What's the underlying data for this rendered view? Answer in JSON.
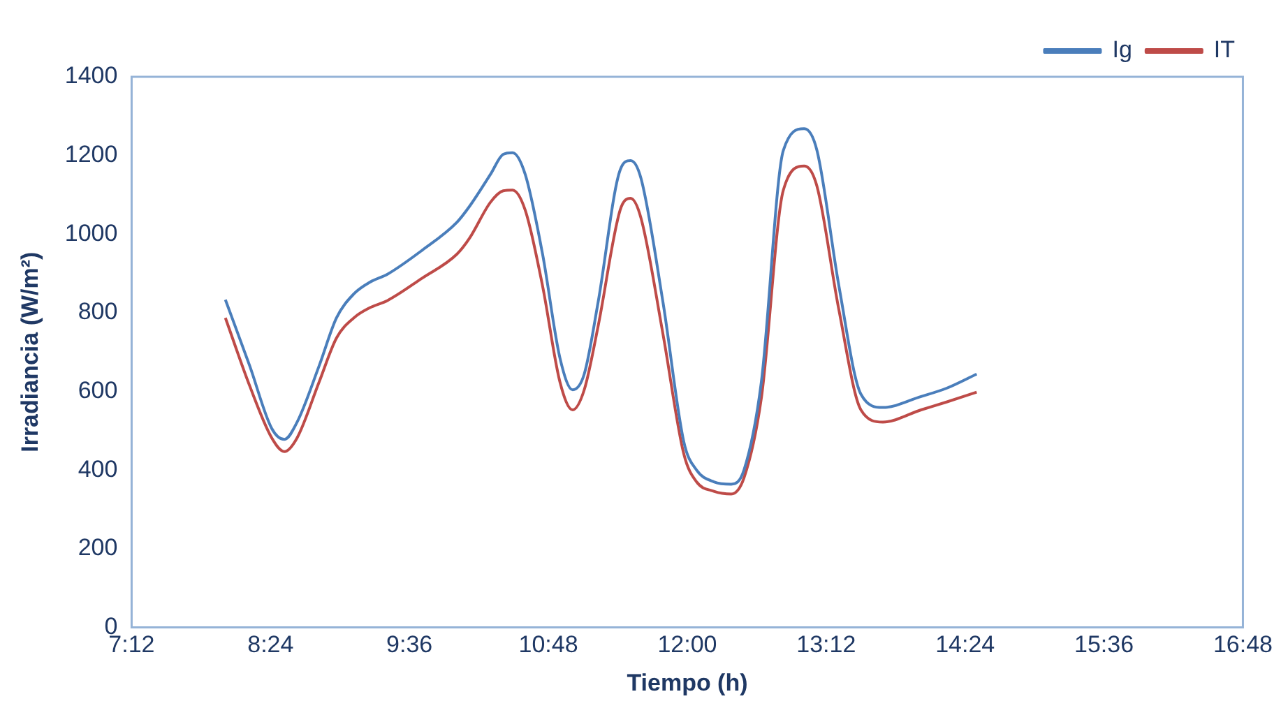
{
  "chart_data": {
    "type": "line",
    "xlabel": "Tiempo (h)",
    "ylabel": "Irradiancia (W/m²)",
    "x": [
      8.01,
      8.22,
      8.41,
      8.52,
      8.63,
      8.82,
      8.97,
      9.12,
      9.26,
      9.41,
      9.71,
      10.01,
      10.12,
      10.3,
      10.41,
      10.49,
      10.6,
      10.75,
      10.9,
      11.01,
      11.11,
      11.23,
      11.42,
      11.51,
      11.6,
      11.79,
      11.97,
      12.08,
      12.23,
      12.38,
      12.49,
      12.64,
      12.83,
      13.01,
      13.12,
      13.31,
      13.5,
      13.69,
      14.02,
      14.24,
      14.5
    ],
    "series": [
      {
        "name": "Ig",
        "color": "#4a7ebb",
        "values": [
          833,
          665,
          506,
          478,
          522,
          665,
          787,
          848,
          878,
          898,
          959,
          1030,
          1071,
          1152,
          1203,
          1207,
          1152,
          949,
          685,
          604,
          644,
          827,
          1163,
          1187,
          1142,
          827,
          472,
          400,
          370,
          364,
          400,
          624,
          1213,
          1268,
          1213,
          868,
          593,
          559,
          587,
          608,
          644
        ]
      },
      {
        "name": "IT",
        "color": "#be4b48",
        "values": [
          787,
          614,
          482,
          447,
          482,
          624,
          736,
          787,
          813,
          831,
          888,
          949,
          990,
          1081,
          1110,
          1112,
          1061,
          868,
          624,
          553,
          604,
          766,
          1061,
          1091,
          1041,
          746,
          441,
          370,
          346,
          339,
          380,
          583,
          1112,
          1173,
          1122,
          807,
          553,
          522,
          553,
          573,
          598
        ]
      }
    ],
    "xlim": [
      7.2,
      16.8
    ],
    "xticks": [
      {
        "value": 7.2,
        "label": "7:12"
      },
      {
        "value": 8.4,
        "label": "8:24"
      },
      {
        "value": 9.6,
        "label": "9:36"
      },
      {
        "value": 10.8,
        "label": "10:48"
      },
      {
        "value": 12,
        "label": "12:00"
      },
      {
        "value": 13.2,
        "label": "13:12"
      },
      {
        "value": 14.4,
        "label": "14:24"
      },
      {
        "value": 15.6,
        "label": "15:36"
      },
      {
        "value": 16.8,
        "label": "16:48"
      }
    ],
    "ylim": [
      0,
      1400
    ],
    "yticks": [
      0,
      200,
      400,
      600,
      800,
      1000,
      1200,
      1400
    ],
    "grid": false,
    "legend": "top right",
    "marker": "none",
    "line_style": "solid"
  }
}
